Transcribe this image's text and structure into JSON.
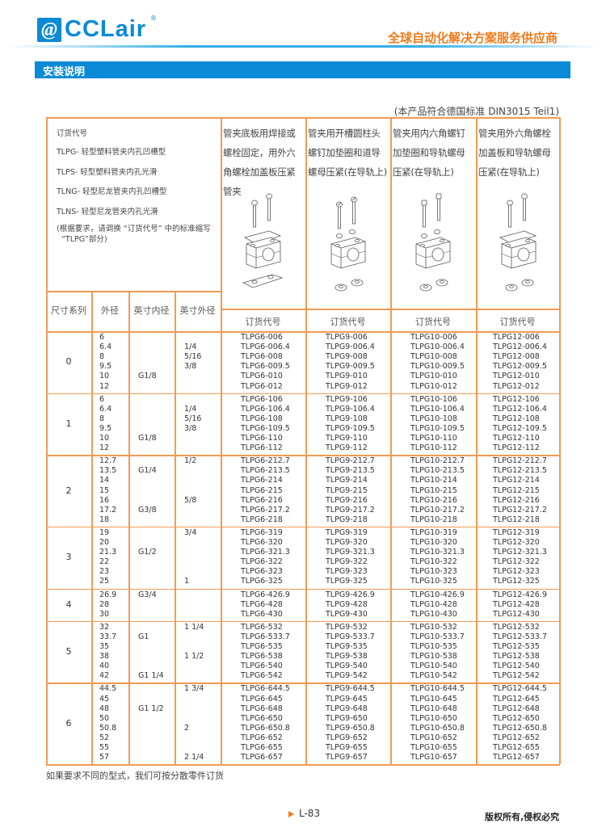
{
  "header": {
    "logo_text": "CCLair",
    "logo_mark": "@",
    "logo_reg": "®",
    "tagline": "全球自动化解决方案服务供应商"
  },
  "section_title": "安装说明",
  "standard_note": "(本产品符合德国标准 DIN3015  Teil1)",
  "legend": {
    "title": "订货代号",
    "items": [
      "TLPG- 轻型塑料管夹内孔凹槽型",
      "TLPS- 轻型塑料管夹内孔光滑",
      "TLNG- 轻型尼龙管夹内孔凹槽型",
      "TLNS- 轻型尼龙管夹内孔光滑"
    ],
    "note_line1": "(根据要求，请调换 “订货代号” 中的标准缩写",
    "note_line2": "“TLPG”部分)"
  },
  "mount_types": [
    {
      "description": "管夹底板用焊接或螺栓固定，用外六角螺栓加盖板压紧管夹",
      "icon": "weld-plate-clamp-assembly-icon",
      "code_header": "订货代号"
    },
    {
      "description": "管夹用开槽圆柱头螺钉加垫圈和道导螺母压紧(在导轨上)",
      "icon": "slotted-screw-rail-clamp-assembly-icon",
      "code_header": "订货代号"
    },
    {
      "description": "管夹用内六角螺钉加垫圈和导轨螺母压紧(在导轨上)",
      "icon": "socket-screw-rail-clamp-assembly-icon",
      "code_header": "订货代号"
    },
    {
      "description": "管夹用外六角螺栓加盖板和导轨螺母压紧(在导轨上)",
      "icon": "hex-bolt-cover-rail-clamp-assembly-icon",
      "code_header": "订货代号"
    }
  ],
  "columns": [
    "尺寸系列",
    "外径",
    "英寸内径",
    "英寸外径"
  ],
  "groups": [
    {
      "size": "0",
      "od": [
        "6",
        "6.4",
        "8",
        "9.5",
        "10",
        "12"
      ],
      "bore": [
        "",
        "",
        "",
        "",
        "G1/8",
        ""
      ],
      "inch_od": [
        "",
        "1/4",
        "5/16",
        "3/8",
        "",
        ""
      ],
      "codes": [
        [
          "TLPG6-006",
          "TLPG6-006.4",
          "TLPG6-008",
          "TLPG6-009.5",
          "TLPG6-010",
          "TLPG6-012"
        ],
        [
          "TLPG9-006",
          "TLPG9-006.4",
          "TLPG9-008",
          "TLPG9-009.5",
          "TLPG9-010",
          "TLPG9-012"
        ],
        [
          "TLPG10-006",
          "TLPG10-006.4",
          "TLPG10-008",
          "TLPG10-009.5",
          "TLPG10-010",
          "TLPG10-012"
        ],
        [
          "TLPG12-006",
          "TLPG12-006.4",
          "TLPG12-008",
          "TLPG12-009.5",
          "TLPG12-010",
          "TLPG12-012"
        ]
      ]
    },
    {
      "size": "1",
      "od": [
        "6",
        "6.4",
        "8",
        "9.5",
        "10",
        "12"
      ],
      "bore": [
        "",
        "",
        "",
        "",
        "G1/8",
        ""
      ],
      "inch_od": [
        "",
        "1/4",
        "5/16",
        "3/8",
        "",
        ""
      ],
      "codes": [
        [
          "TLPG6-106",
          "TLPG6-106.4",
          "TLPG6-108",
          "TLPG6-109.5",
          "TLPG6-110",
          "TLPG6-112"
        ],
        [
          "TLPG9-106",
          "TLPG9-106.4",
          "TLPG9-108",
          "TLPG9-109.5",
          "TLPG9-110",
          "TLPG9-112"
        ],
        [
          "TLPG10-106",
          "TLPG10-106.4",
          "TLPG10-108",
          "TLPG10-109.5",
          "TLPG10-110",
          "TLPG10-112"
        ],
        [
          "TLPG12-106",
          "TLPG12-106.4",
          "TLPG12-108",
          "TLPG12-109.5",
          "TLPG12-110",
          "TLPG12-112"
        ]
      ]
    },
    {
      "size": "2",
      "od": [
        "12.7",
        "13.5",
        "14",
        "15",
        "16",
        "17.2",
        "18"
      ],
      "bore": [
        "",
        "G1/4",
        "",
        "",
        "",
        "G3/8",
        ""
      ],
      "inch_od": [
        "1/2",
        "",
        "",
        "",
        "5/8",
        "",
        ""
      ],
      "codes": [
        [
          "TLPG6-212.7",
          "TLPG6-213.5",
          "TLPG6-214",
          "TLPG6-215",
          "TLPG6-216",
          "TLPG6-217.2",
          "TLPG6-218"
        ],
        [
          "TLPG9-212.7",
          "TLPG9-213.5",
          "TLPG9-214",
          "TLPG9-215",
          "TLPG9-216",
          "TLPG9-217.2",
          "TLPG9-218"
        ],
        [
          "TLPG10-212.7",
          "TLPG10-213.5",
          "TLPG10-214",
          "TLPG10-215",
          "TLPG10-216",
          "TLPG10-217.2",
          "TLPG10-218"
        ],
        [
          "TLPG12-212.7",
          "TLPG12-213.5",
          "TLPG12-214",
          "TLPG12-215",
          "TLPG12-216",
          "TLPG12-217.2",
          "TLPG12-218"
        ]
      ]
    },
    {
      "size": "3",
      "od": [
        "19",
        "20",
        "21.3",
        "22",
        "23",
        "25"
      ],
      "bore": [
        "",
        "",
        "G1/2",
        "",
        "",
        ""
      ],
      "inch_od": [
        "3/4",
        "",
        "",
        "",
        "",
        "1"
      ],
      "codes": [
        [
          "TLPG6-319",
          "TLPG6-320",
          "TLPG6-321.3",
          "TLPG6-322",
          "TLPG6-323",
          "TLPG6-325"
        ],
        [
          "TLPG9-319",
          "TLPG9-320",
          "TLPG9-321.3",
          "TLPG9-322",
          "TLPG9-323",
          "TLPG9-325"
        ],
        [
          "TLPG10-319",
          "TLPG10-320",
          "TLPG10-321.3",
          "TLPG10-322",
          "TLPG10-323",
          "TLPG10-325"
        ],
        [
          "TLPG12-319",
          "TLPG12-320",
          "TLPG12-321.3",
          "TLPG12-322",
          "TLPG12-323",
          "TLPG12-325"
        ]
      ]
    },
    {
      "size": "4",
      "od": [
        "26.9",
        "28",
        "30"
      ],
      "bore": [
        "G3/4",
        "",
        ""
      ],
      "inch_od": [
        "",
        "",
        ""
      ],
      "codes": [
        [
          "TLPG6-426.9",
          "TLPG6-428",
          "TLPG6-430"
        ],
        [
          "TLPG9-426.9",
          "TLPG9-428",
          "TLPG9-430"
        ],
        [
          "TLPG10-426.9",
          "TLPG10-428",
          "TLPG10-430"
        ],
        [
          "TLPG12-426.9",
          "TLPG12-428",
          "TLPG12-430"
        ]
      ]
    },
    {
      "size": "5",
      "od": [
        "32",
        "33.7",
        "35",
        "38",
        "40",
        "42"
      ],
      "bore": [
        "",
        "G1",
        "",
        "",
        "",
        "G1 1/4"
      ],
      "inch_od": [
        "1 1/4",
        "",
        "",
        "1 1/2",
        "",
        ""
      ],
      "codes": [
        [
          "TLPG6-532",
          "TLPG6-533.7",
          "TLPG6-535",
          "TLPG6-538",
          "TLPG6-540",
          "TLPG6-542"
        ],
        [
          "TLPG9-532",
          "TLPG9-533.7",
          "TLPG9-535",
          "TLPG9-538",
          "TLPG9-540",
          "TLPG9-542"
        ],
        [
          "TLPG10-532",
          "TLPG10-533.7",
          "TLPG10-535",
          "TLPG10-538",
          "TLPG10-540",
          "TLPG10-542"
        ],
        [
          "TLPG12-532",
          "TLPG12-533.7",
          "TLPG12-535",
          "TLPG12-538",
          "TLPG12-540",
          "TLPG12-542"
        ]
      ]
    },
    {
      "size": "6",
      "od": [
        "44.5",
        "45",
        "48",
        "50",
        "50.8",
        "52",
        "55",
        "57"
      ],
      "bore": [
        "",
        "",
        "G1 1/2",
        "",
        "",
        "",
        "",
        ""
      ],
      "inch_od": [
        "1 3/4",
        "",
        "",
        "",
        "2",
        "",
        "",
        "2 1/4"
      ],
      "codes": [
        [
          "TLPG6-644.5",
          "TLPG6-645",
          "TLPG6-648",
          "TLPG6-650",
          "TLPG6-650.8",
          "TLPG6-652",
          "TLPG6-655",
          "TLPG6-657"
        ],
        [
          "TLPG9-644.5",
          "TLPG9-645",
          "TLPG9-648",
          "TLPG9-650",
          "TLPG9-650.8",
          "TLPG9-652",
          "TLPG9-655",
          "TLPG9-657"
        ],
        [
          "TLPG10-644.5",
          "TLPG10-645",
          "TLPG10-648",
          "TLPG10-650",
          "TLPG10-650.8",
          "TLPG10-652",
          "TLPG10-655",
          "TLPG10-657"
        ],
        [
          "TLPG12-644.5",
          "TLPG12-645",
          "TLPG12-648",
          "TLPG12-650",
          "TLPG12-650.8",
          "TLPG12-652",
          "TLPG12-655",
          "TLPG12-657"
        ]
      ]
    }
  ],
  "bottom_note": "如果要求不同的型式，我们可按分散零件订货",
  "footer": {
    "page": "L-83",
    "copyright": "版权所有,侵权必究"
  },
  "colors": {
    "brand_blue": "#0a8ad6",
    "accent_orange": "#f07a1a",
    "table_border": "#f39a52"
  }
}
